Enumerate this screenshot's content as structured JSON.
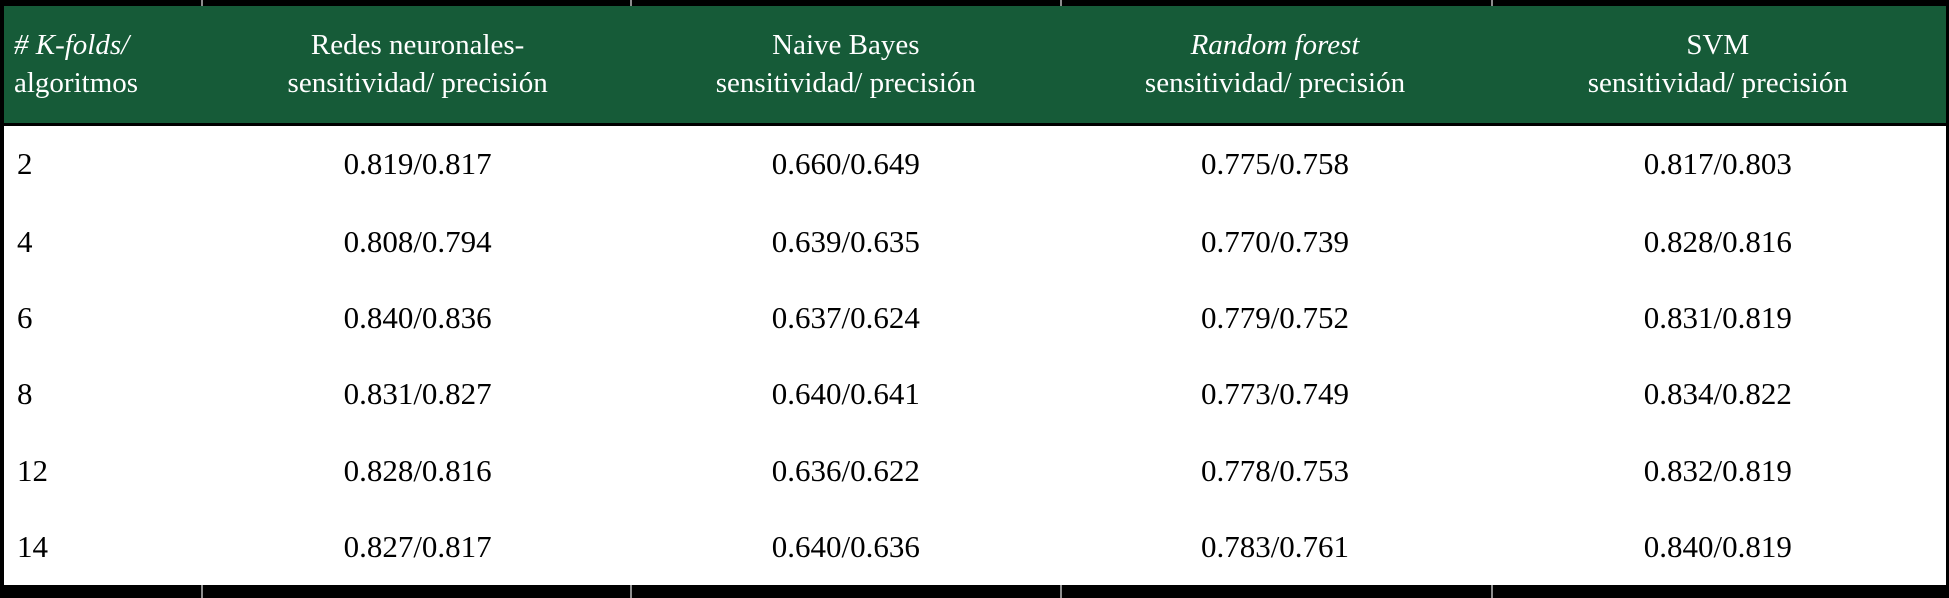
{
  "table": {
    "header": {
      "kfolds": {
        "line1": "# K-folds/",
        "line2": "algoritmos"
      },
      "columns": [
        {
          "name": "Redes neuronales-",
          "metrics": "sensitividad/ precisión"
        },
        {
          "name": "Naive Bayes",
          "metrics": "sensitividad/ precisión"
        },
        {
          "name": "Random forest",
          "metrics": "sensitividad/ precisión"
        },
        {
          "name": "SVM",
          "metrics": "sensitividad/ precisión"
        }
      ]
    },
    "rows": [
      {
        "kfolds": "2",
        "values": [
          "0.819/0.817",
          "0.660/0.649",
          "0.775/0.758",
          "0.817/0.803"
        ]
      },
      {
        "kfolds": "4",
        "values": [
          "0.808/0.794",
          "0.639/0.635",
          "0.770/0.739",
          "0.828/0.816"
        ]
      },
      {
        "kfolds": "6",
        "values": [
          "0.840/0.836",
          "0.637/0.624",
          "0.779/0.752",
          "0.831/0.819"
        ]
      },
      {
        "kfolds": "8",
        "values": [
          "0.831/0.827",
          "0.640/0.641",
          "0.773/0.749",
          "0.834/0.822"
        ]
      },
      {
        "kfolds": "12",
        "values": [
          "0.828/0.816",
          "0.636/0.622",
          "0.778/0.753",
          "0.832/0.819"
        ]
      },
      {
        "kfolds": "14",
        "values": [
          "0.827/0.817",
          "0.640/0.636",
          "0.783/0.761",
          "0.840/0.819"
        ]
      }
    ]
  },
  "chart_data": {
    "type": "table",
    "columns": [
      "# K-folds/ algoritmos",
      "Redes neuronales- sensitividad/ precisión",
      "Naive Bayes sensitividad/ precisión",
      "Random forest sensitividad/ precisión",
      "SVM sensitividad/ precisión"
    ],
    "rows": [
      [
        "2",
        "0.819/0.817",
        "0.660/0.649",
        "0.775/0.758",
        "0.817/0.803"
      ],
      [
        "4",
        "0.808/0.794",
        "0.639/0.635",
        "0.770/0.739",
        "0.828/0.816"
      ],
      [
        "6",
        "0.840/0.836",
        "0.637/0.624",
        "0.779/0.752",
        "0.831/0.819"
      ],
      [
        "8",
        "0.831/0.827",
        "0.640/0.641",
        "0.773/0.749",
        "0.834/0.822"
      ],
      [
        "12",
        "0.828/0.816",
        "0.636/0.622",
        "0.778/0.753",
        "0.832/0.819"
      ],
      [
        "14",
        "0.827/0.817",
        "0.640/0.636",
        "0.783/0.761",
        "0.840/0.819"
      ]
    ]
  },
  "colors": {
    "header_bg": "#165b38",
    "header_text": "#ffffff",
    "body_text": "#000000",
    "border": "#000000"
  }
}
